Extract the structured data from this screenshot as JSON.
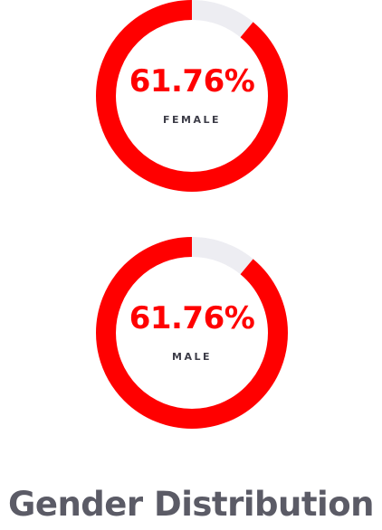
{
  "chart_data": {
    "type": "gauge",
    "title": "Gender Distribution",
    "colors": {
      "value": "#ff0000",
      "track": "#ededf2",
      "label": "#3d3d48",
      "title": "#5b5b66"
    },
    "series": [
      {
        "name": "FEMALE",
        "value": 61.76,
        "display": "61.76%",
        "arc_fraction": 0.89
      },
      {
        "name": "MALE",
        "value": 61.76,
        "display": "61.76%",
        "arc_fraction": 0.89
      }
    ]
  }
}
